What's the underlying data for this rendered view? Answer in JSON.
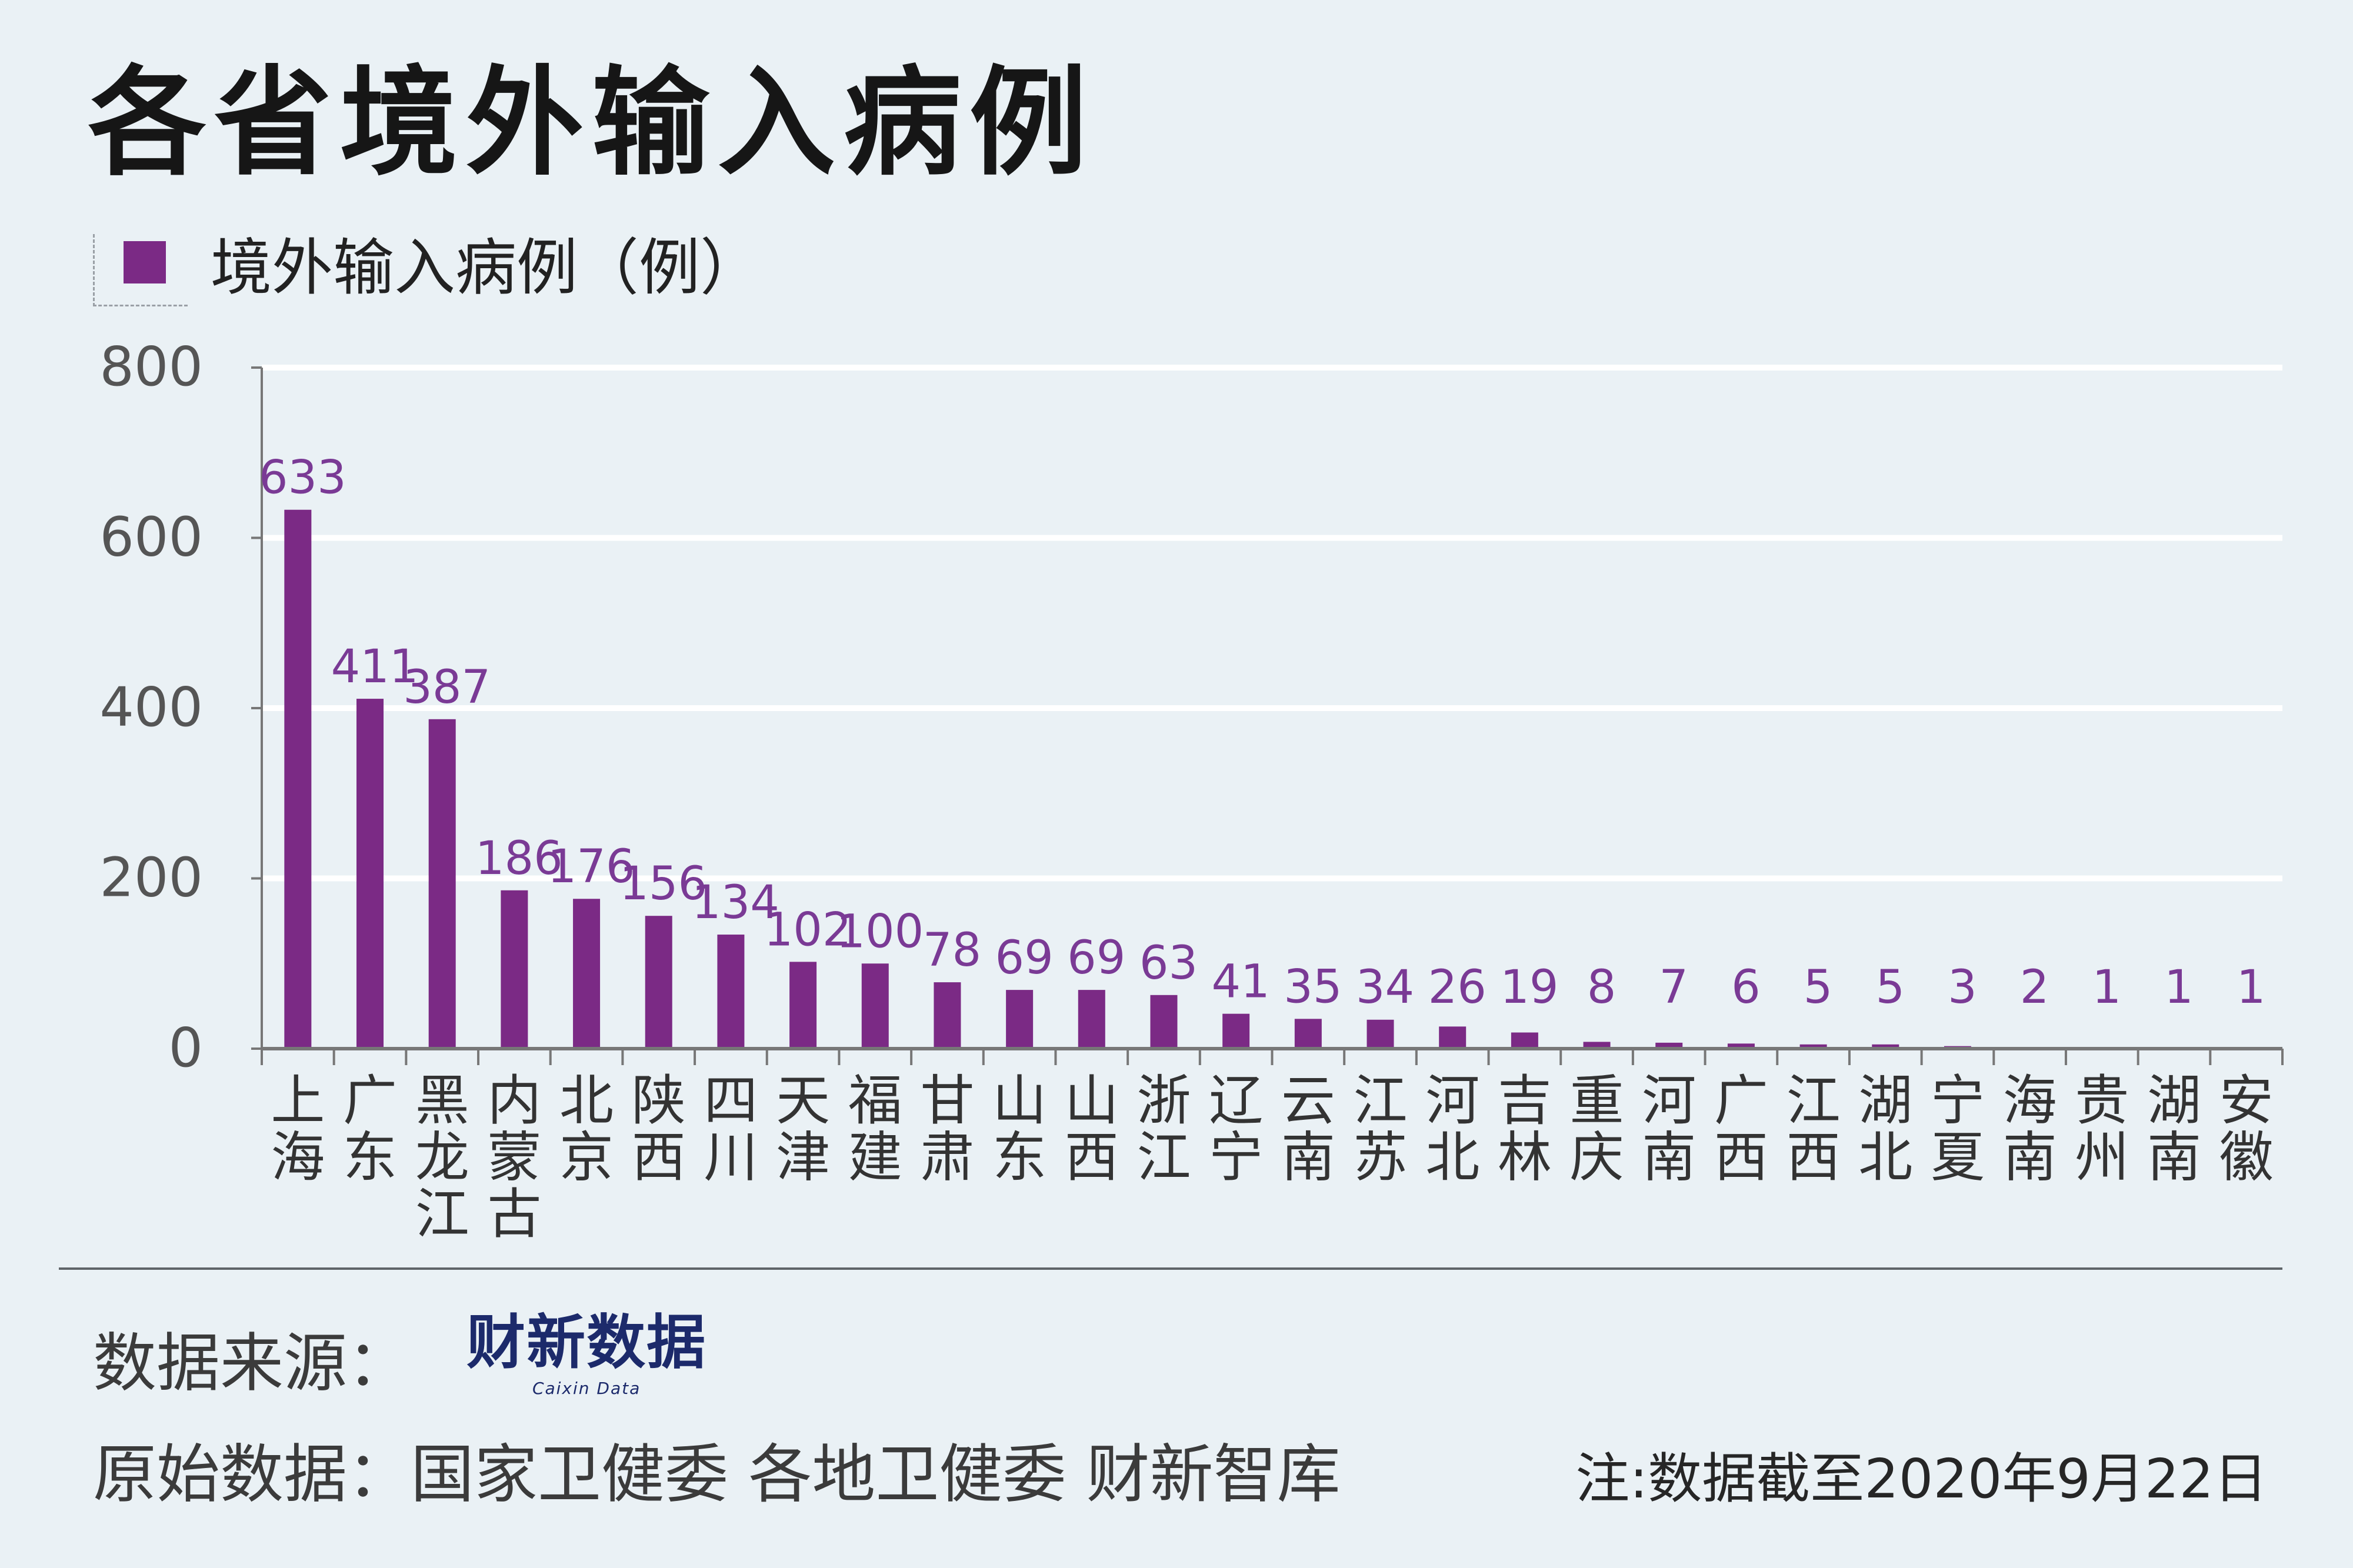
{
  "header": {
    "title": "各省境外输入病例"
  },
  "legend": {
    "label": "境外输入病例（例）"
  },
  "footer": {
    "source_label": "数据来源：",
    "source_logo_text": "财新数据",
    "source_logo_sub": "Caixin Data",
    "raw_data": "原始数据：国家卫健委 各地卫健委 财新智库",
    "note": "注:数据截至2020年9月22日"
  },
  "colors": {
    "bar": "#7b2a85",
    "value_label": "#7a3a95",
    "background": "#eaf1f5"
  },
  "chart_data": {
    "type": "bar",
    "title": "各省境外输入病例",
    "xlabel": "",
    "ylabel": "",
    "ylim": [
      0,
      800
    ],
    "yticks": [
      0,
      200,
      400,
      600,
      800
    ],
    "grid": true,
    "legend_position": "top-left",
    "categories": [
      "上海",
      "广东",
      "黑龙江",
      "内蒙古",
      "北京",
      "陕西",
      "四川",
      "天津",
      "福建",
      "甘肃",
      "山东",
      "山西",
      "浙江",
      "辽宁",
      "云南",
      "江苏",
      "河北",
      "吉林",
      "重庆",
      "河南",
      "广西",
      "江西",
      "湖北",
      "宁夏",
      "海南",
      "贵州",
      "湖南",
      "安徽"
    ],
    "series": [
      {
        "name": "境外输入病例（例）",
        "values": [
          633,
          411,
          387,
          186,
          176,
          156,
          134,
          102,
          100,
          78,
          69,
          69,
          63,
          41,
          35,
          34,
          26,
          19,
          8,
          7,
          6,
          5,
          5,
          3,
          2,
          1,
          1,
          1
        ]
      }
    ]
  }
}
